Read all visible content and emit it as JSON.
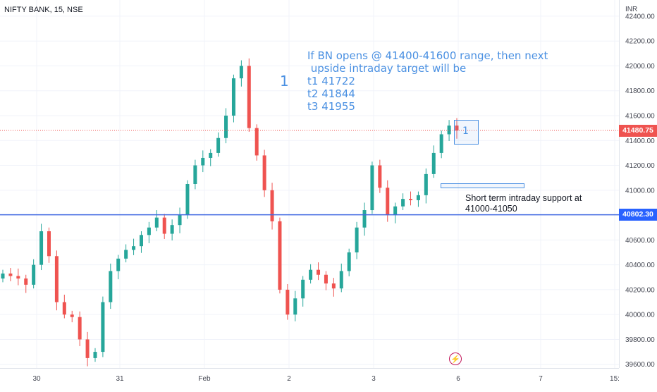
{
  "header": {
    "title": "NIFTY BANK, 15, NSE"
  },
  "price_axis": {
    "currency": "INR",
    "ticks": [
      "42400.00",
      "42200.00",
      "42000.00",
      "41800.00",
      "41600.00",
      "41400.00",
      "41200.00",
      "41000.00",
      "40600.00",
      "40400.00",
      "40200.00",
      "40000.00",
      "39800.00",
      "39600.00"
    ],
    "tick_values": [
      42400,
      42200,
      42000,
      41800,
      41600,
      41400,
      41200,
      41000,
      40600,
      40400,
      40200,
      40000,
      39800,
      39600
    ],
    "current_price_label": "41480.75",
    "current_price": 41480.75,
    "support_line_label": "40802.30",
    "support_line": 40802.3
  },
  "time_axis": {
    "labels": [
      "30",
      "31",
      "Feb",
      "2",
      "3",
      "6",
      "7",
      "15:"
    ]
  },
  "annotations": {
    "main_text": [
      "If BN opens @ 41400-41600 range, then next",
      " upside intraday target will be",
      "t1 41722",
      "t2 41844",
      "t3 41955"
    ],
    "number_one": "1",
    "box_number": "1",
    "support_text": [
      "Short term intraday support at",
      "41000-41050"
    ]
  },
  "colors": {
    "up": "#26a69a",
    "down": "#ef5350",
    "annotation": "#4a90e2",
    "line": "#4169e1",
    "price_tag_up": "#ef5350",
    "support_tag": "#2962ff"
  },
  "chart_data": {
    "type": "candlestick",
    "title": "NIFTY BANK, 15, NSE",
    "y_unit": "INR",
    "ylim": [
      39600,
      42500
    ],
    "hlines": [
      41480.75,
      40802.3
    ],
    "approx_closes": [
      40330,
      40310,
      40290,
      40240,
      40400,
      40670,
      40470,
      40100,
      40000,
      39980,
      39800,
      39650,
      39700,
      40100,
      40350,
      40450,
      40520,
      40550,
      40640,
      40700,
      40780,
      40650,
      40720,
      40800,
      41050,
      41200,
      41260,
      41300,
      41420,
      41600,
      41900,
      42000,
      41500,
      41280,
      41000,
      40750,
      40200,
      40000,
      40130,
      40280,
      40360,
      40320,
      40250,
      40210,
      40350,
      40500,
      40700,
      40840,
      41200,
      41020,
      40800,
      40870,
      40930,
      40920,
      40960,
      41130,
      41300,
      41450,
      41520,
      41480
    ]
  }
}
